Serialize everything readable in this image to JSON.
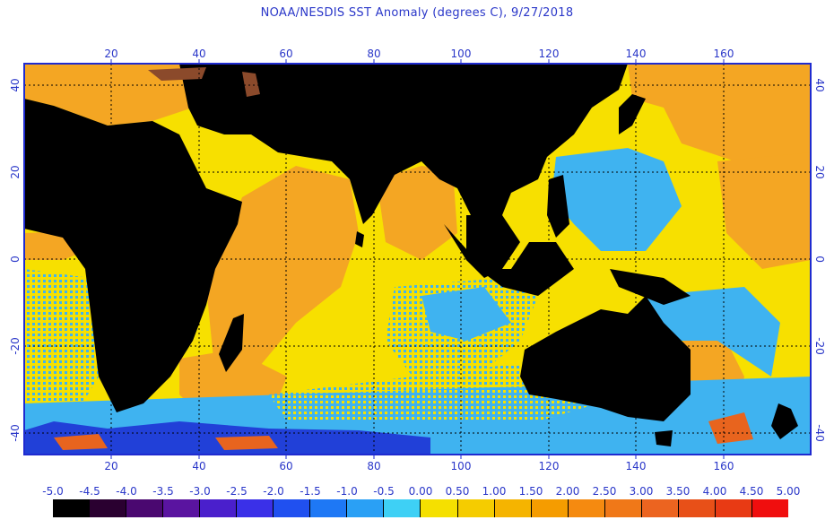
{
  "title": "NOAA/NESDIS SST Anomaly (degrees C), 9/27/2018",
  "map": {
    "lon_range": [
      0,
      180
    ],
    "lat_range": [
      -45,
      45
    ],
    "lon_ticks": [
      "20",
      "40",
      "60",
      "80",
      "100",
      "120",
      "140",
      "160"
    ],
    "lat_ticks": [
      "40",
      "20",
      "0",
      "-20",
      "-40"
    ],
    "colors": {
      "land": "#000000",
      "frame": "#1f2bd0",
      "grid": "#000000",
      "warm_anomaly": "#f4a623",
      "neutral_positive": "#f7e000",
      "cool_anomaly": "#3fb3f0",
      "strong_cool": "#2140d8",
      "strong_warm": "#e8641e",
      "lake": "#8b4a2b"
    }
  },
  "legend": {
    "labels": [
      "-5.0",
      "-4.5",
      "-4.0",
      "-3.5",
      "-3.0",
      "-2.5",
      "-2.0",
      "-1.5",
      "-1.0",
      "-0.5",
      "0.00",
      "0.50",
      "1.00",
      "1.50",
      "2.00",
      "2.50",
      "3.00",
      "3.50",
      "4.00",
      "4.50",
      "5.00"
    ],
    "colors": [
      "#000000",
      "#2a0030",
      "#4a0870",
      "#5a14a0",
      "#4a1fcc",
      "#3a30e8",
      "#2050f0",
      "#1e78f5",
      "#2aa0f5",
      "#3ed0f5",
      "#f0f020",
      "#f5e000",
      "#f5cc00",
      "#f5b400",
      "#f59c00",
      "#f58a10",
      "#f07818",
      "#ec6420",
      "#e85018",
      "#e83a14",
      "#f00e0e"
    ]
  }
}
